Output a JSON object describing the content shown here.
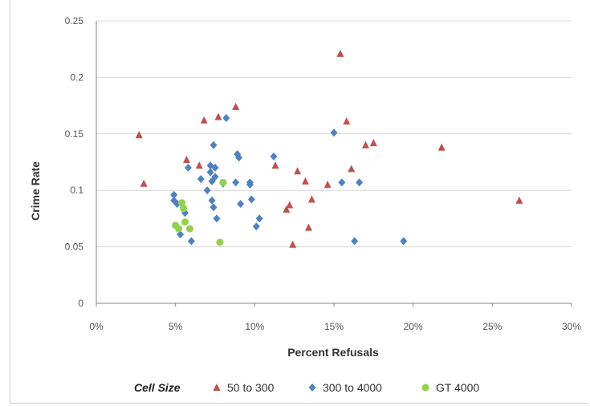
{
  "chart_data": {
    "type": "scatter",
    "xlabel": "Percent Refusals",
    "ylabel": "Crime Rate",
    "xlim": [
      0,
      0.3
    ],
    "ylim": [
      0,
      0.25
    ],
    "x_ticks": [
      "0%",
      "5%",
      "10%",
      "15%",
      "20%",
      "25%",
      "30%"
    ],
    "y_ticks": [
      "0",
      "0.05",
      "0.1",
      "0.15",
      "0.2",
      "0.25"
    ],
    "grid": "horizontal",
    "legend": {
      "title": "Cell Size",
      "placement": "bottom"
    },
    "series": [
      {
        "name": "50 to 300",
        "color": "#c0504d",
        "marker": "triangle",
        "points": [
          [
            0.027,
            0.149
          ],
          [
            0.03,
            0.106
          ],
          [
            0.057,
            0.127
          ],
          [
            0.065,
            0.122
          ],
          [
            0.068,
            0.162
          ],
          [
            0.077,
            0.165
          ],
          [
            0.088,
            0.174
          ],
          [
            0.113,
            0.122
          ],
          [
            0.12,
            0.083
          ],
          [
            0.122,
            0.087
          ],
          [
            0.124,
            0.052
          ],
          [
            0.127,
            0.117
          ],
          [
            0.132,
            0.108
          ],
          [
            0.134,
            0.067
          ],
          [
            0.136,
            0.092
          ],
          [
            0.146,
            0.105
          ],
          [
            0.154,
            0.221
          ],
          [
            0.158,
            0.161
          ],
          [
            0.161,
            0.119
          ],
          [
            0.17,
            0.14
          ],
          [
            0.175,
            0.142
          ],
          [
            0.218,
            0.138
          ],
          [
            0.267,
            0.091
          ]
        ]
      },
      {
        "name": "300 to 4000",
        "color": "#4f81bd",
        "marker": "diamond",
        "points": [
          [
            0.049,
            0.096
          ],
          [
            0.049,
            0.091
          ],
          [
            0.051,
            0.088
          ],
          [
            0.053,
            0.061
          ],
          [
            0.056,
            0.08
          ],
          [
            0.058,
            0.12
          ],
          [
            0.06,
            0.055
          ],
          [
            0.066,
            0.11
          ],
          [
            0.07,
            0.1
          ],
          [
            0.072,
            0.122
          ],
          [
            0.072,
            0.116
          ],
          [
            0.073,
            0.108
          ],
          [
            0.073,
            0.091
          ],
          [
            0.074,
            0.085
          ],
          [
            0.074,
            0.14
          ],
          [
            0.075,
            0.12
          ],
          [
            0.075,
            0.112
          ],
          [
            0.076,
            0.075
          ],
          [
            0.08,
            0.106
          ],
          [
            0.082,
            0.164
          ],
          [
            0.088,
            0.107
          ],
          [
            0.089,
            0.132
          ],
          [
            0.09,
            0.129
          ],
          [
            0.091,
            0.088
          ],
          [
            0.097,
            0.107
          ],
          [
            0.097,
            0.105
          ],
          [
            0.098,
            0.092
          ],
          [
            0.101,
            0.068
          ],
          [
            0.103,
            0.075
          ],
          [
            0.112,
            0.13
          ],
          [
            0.15,
            0.151
          ],
          [
            0.155,
            0.107
          ],
          [
            0.163,
            0.055
          ],
          [
            0.166,
            0.107
          ],
          [
            0.194,
            0.055
          ]
        ]
      },
      {
        "name": "GT 4000",
        "color": "#92d050",
        "marker": "circle",
        "points": [
          [
            0.05,
            0.069
          ],
          [
            0.052,
            0.066
          ],
          [
            0.054,
            0.089
          ],
          [
            0.055,
            0.084
          ],
          [
            0.056,
            0.072
          ],
          [
            0.059,
            0.066
          ],
          [
            0.078,
            0.054
          ],
          [
            0.08,
            0.107
          ]
        ]
      }
    ]
  }
}
